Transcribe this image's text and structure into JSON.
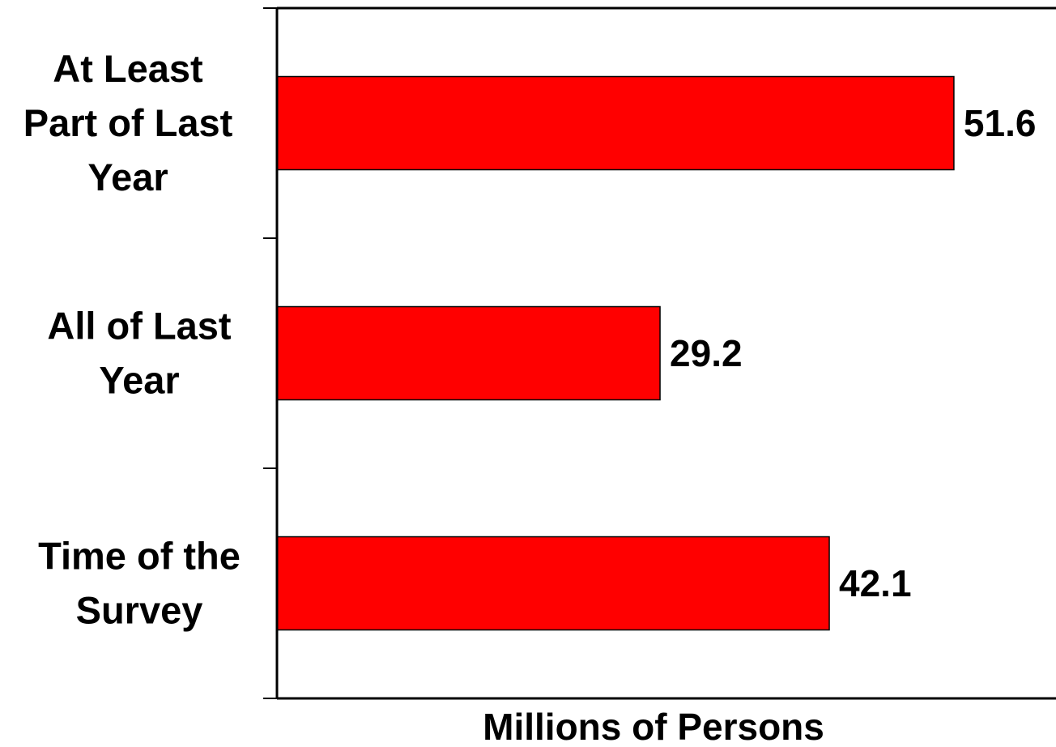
{
  "chart_data": {
    "type": "bar",
    "orientation": "horizontal",
    "categories": [
      [
        "At Least",
        "Part of Last",
        "Year"
      ],
      [
        "All of Last",
        "Year"
      ],
      [
        "Time of the",
        "Survey"
      ]
    ],
    "values": [
      51.6,
      29.2,
      42.1
    ],
    "value_labels": [
      "51.6",
      "29.2",
      "42.1"
    ],
    "xlabel": "Millions of Persons",
    "ylabel": "",
    "title": "",
    "xlim": [
      0,
      60
    ],
    "grid": false,
    "legend": "none",
    "bar_color": "#ff0000",
    "bar_edge_color": "#000000"
  }
}
